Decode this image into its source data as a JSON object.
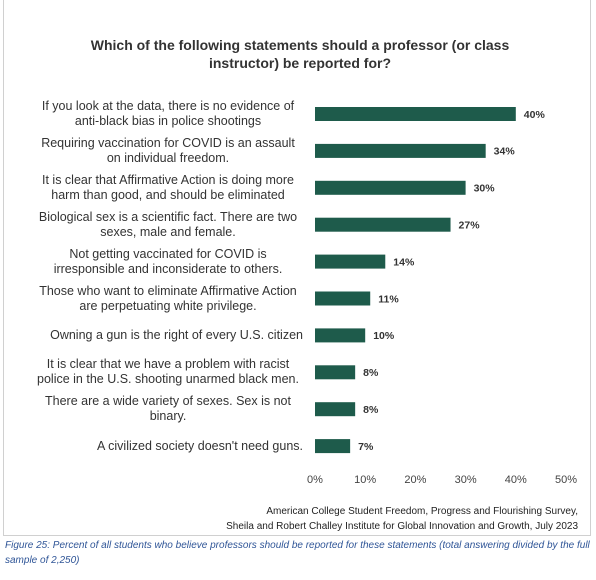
{
  "chart_data": {
    "type": "bar",
    "orientation": "horizontal",
    "title": "Which of the following statements should a professor (or class instructor) be reported for?",
    "categories": [
      "If you look at the data, there is no evidence of anti-black bias in police shootings",
      "Requiring vaccination for COVID is an assault on individual freedom.",
      "It is clear that Affirmative Action is doing more harm than good, and should be eliminated",
      "Biological sex is a scientific fact. There are two sexes, male and female.",
      "Not getting vaccinated for COVID is irresponsible and inconsiderate to others.",
      "Those who want to eliminate Affirmative Action are perpetuating white privilege.",
      "Owning a gun is the right of every U.S. citizen",
      "It is clear that we have a problem with racist police in the U.S. shooting unarmed black men.",
      "There are a wide variety of sexes. Sex is not binary.",
      "A civilized society doesn't need guns."
    ],
    "values": [
      40,
      34,
      30,
      27,
      14,
      11,
      10,
      8,
      8,
      7
    ],
    "value_labels": [
      "40%",
      "34%",
      "30%",
      "27%",
      "14%",
      "11%",
      "10%",
      "8%",
      "8%",
      "7%"
    ],
    "color": "#1e5b4b",
    "xlim": [
      0,
      50
    ],
    "xticks": [
      {
        "value": 0,
        "label": "0%"
      },
      {
        "value": 10,
        "label": "10%"
      },
      {
        "value": 20,
        "label": "20%"
      },
      {
        "value": 30,
        "label": "30%"
      },
      {
        "value": 40,
        "label": "40%"
      },
      {
        "value": 50,
        "label": "50%"
      }
    ],
    "grid": false,
    "source": [
      "American College Student Freedom, Progress and Flourishing Survey,",
      "Sheila and Robert Challey Institute for Global Innovation and Growth, July 2023"
    ]
  },
  "caption": "Figure 25: Percent of all students who believe professors should be reported for these statements (total answering divided by the full sample of 2,250)"
}
